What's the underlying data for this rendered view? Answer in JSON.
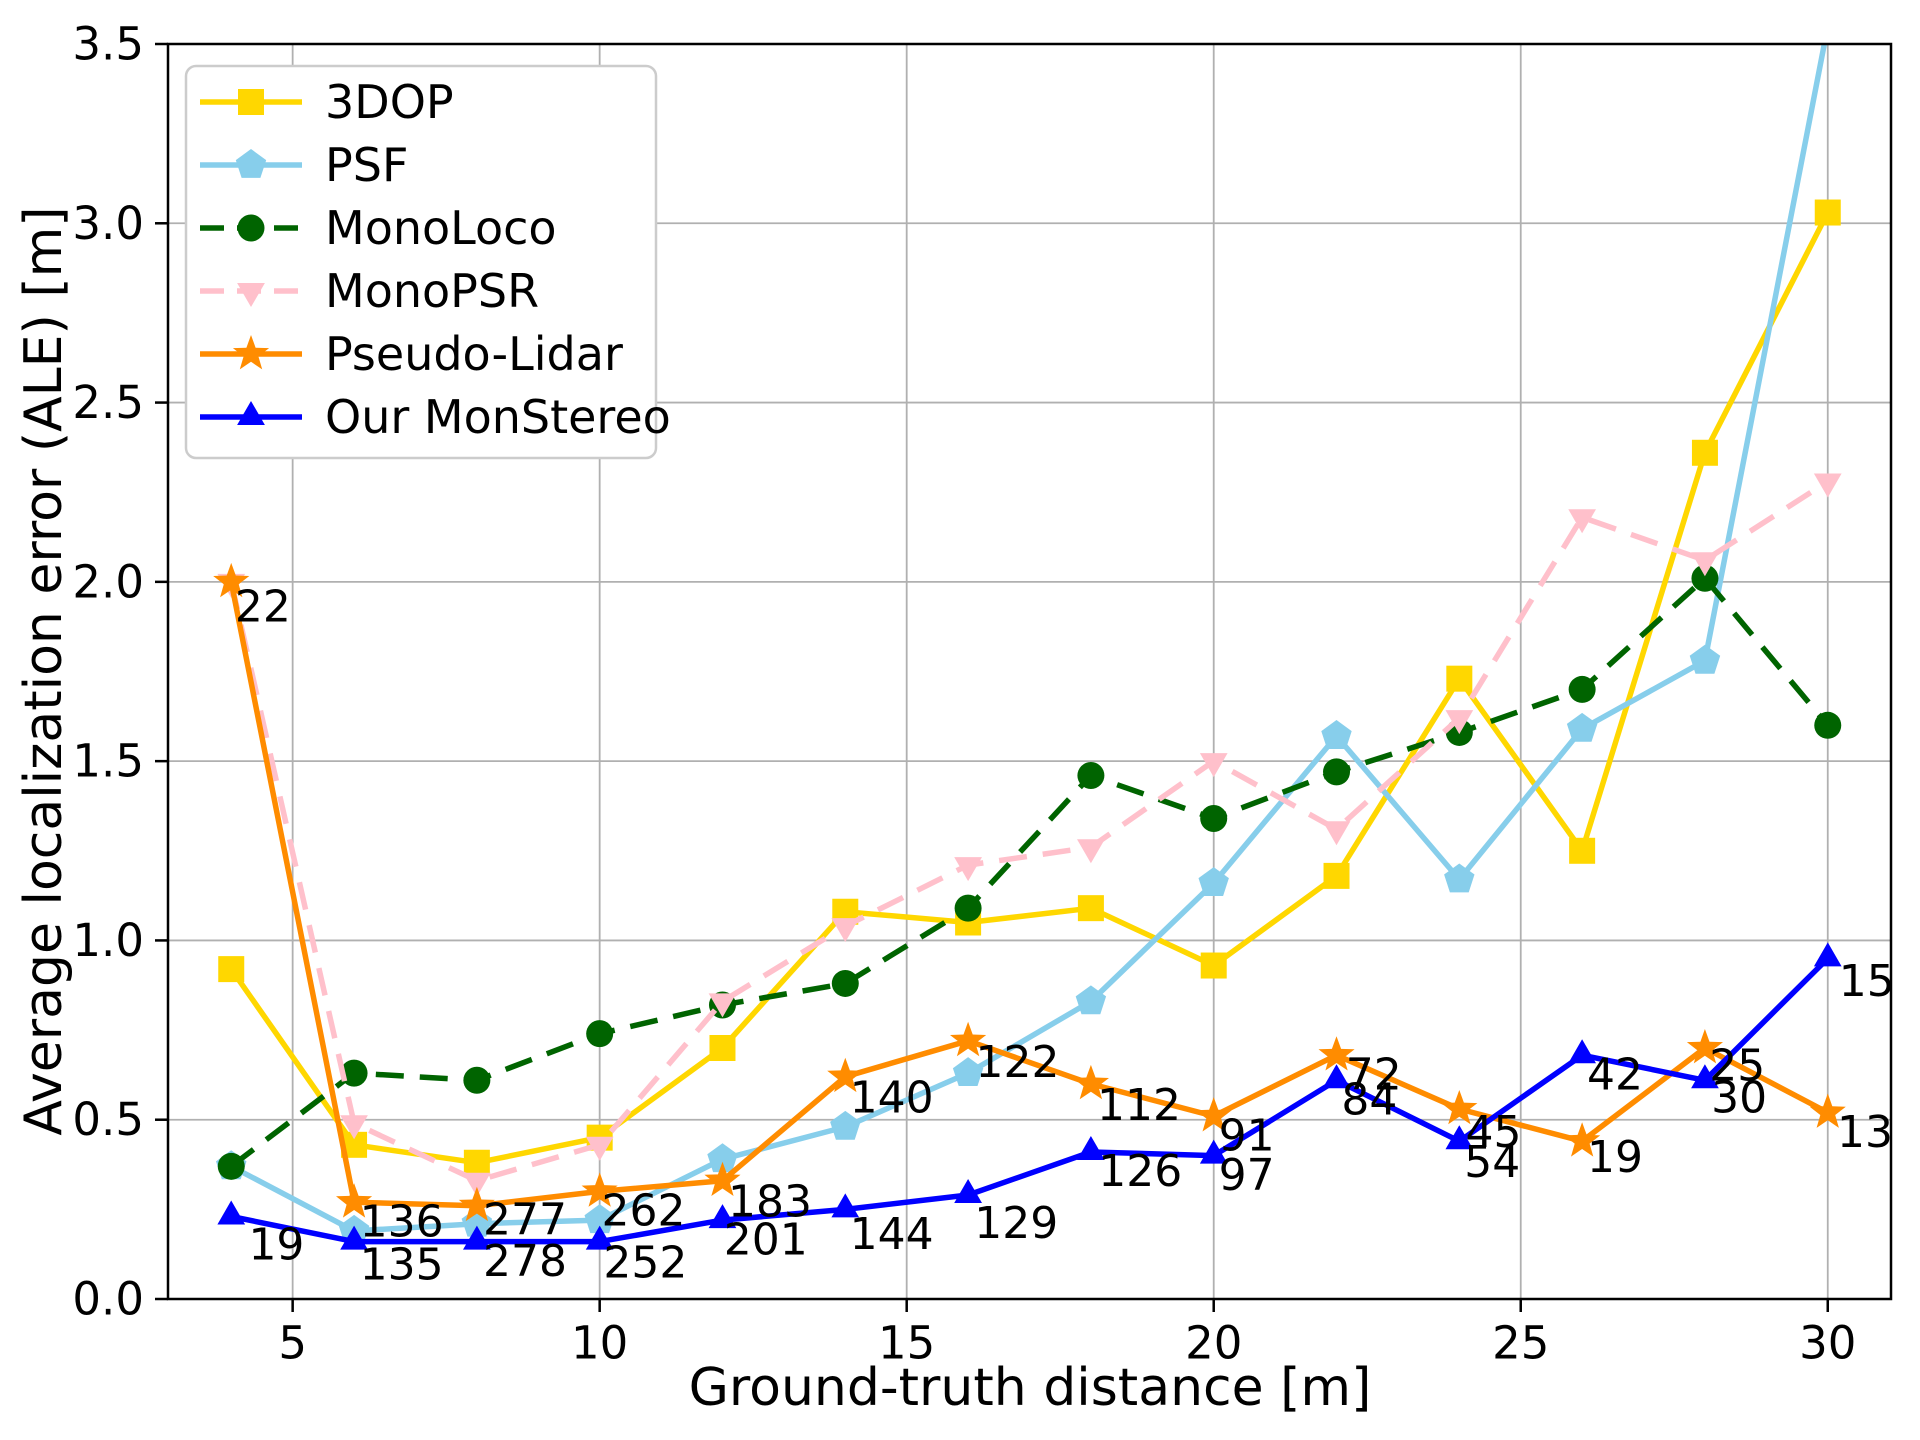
{
  "figure": {
    "background": "#ffffff",
    "grid_color": "#b0b0b0",
    "spine_color": "#000000",
    "legend_border_color": "#cccccc",
    "text_color": "#000000"
  },
  "chart_data": {
    "type": "line",
    "title": "",
    "xlabel": "Ground-truth distance [m]",
    "ylabel": "Average localization error (ALE) [m]",
    "xlim": [
      2.97,
      31.03
    ],
    "ylim": [
      0,
      3.5
    ],
    "xticks": [
      5,
      10,
      15,
      20,
      25,
      30
    ],
    "yticks": [
      0,
      0.5,
      1,
      1.5,
      2,
      2.5,
      3,
      3.5
    ],
    "ytick_labels": [
      "0.0",
      "0.5",
      "1.0",
      "1.5",
      "2.0",
      "2.5",
      "3.0",
      "3.5"
    ],
    "grid": true,
    "legend_position": "upper-left",
    "x": [
      4,
      6,
      8,
      10,
      12,
      14,
      16,
      18,
      20,
      22,
      24,
      26,
      28,
      30
    ],
    "series": [
      {
        "name": "3DOP",
        "color": "#FFD700",
        "marker": "square",
        "dash": false,
        "values": [
          0.92,
          0.43,
          0.38,
          0.45,
          0.7,
          1.08,
          1.05,
          1.09,
          0.93,
          1.18,
          1.73,
          1.25,
          2.36,
          3.03
        ]
      },
      {
        "name": "PSF",
        "color": "#87CEEB",
        "marker": "pentagon",
        "dash": false,
        "values": [
          0.37,
          0.19,
          0.21,
          0.22,
          0.39,
          0.48,
          0.63,
          0.83,
          1.16,
          1.57,
          1.17,
          1.59,
          1.78,
          3.55
        ]
      },
      {
        "name": "MonoLoco",
        "color": "#006400",
        "marker": "circle",
        "dash": true,
        "values": [
          0.37,
          0.63,
          0.61,
          0.74,
          0.82,
          0.88,
          1.09,
          1.46,
          1.34,
          1.47,
          1.58,
          1.7,
          2.01,
          1.6
        ]
      },
      {
        "name": "MonoPSR",
        "color": "#FFC0CB",
        "marker": "triangle-down",
        "dash": true,
        "values": [
          2.0,
          0.49,
          0.33,
          0.43,
          0.83,
          1.04,
          1.21,
          1.26,
          1.5,
          1.31,
          1.62,
          2.18,
          2.06,
          2.28
        ]
      },
      {
        "name": "Pseudo-Lidar",
        "color": "#FF8C00",
        "marker": "star",
        "dash": false,
        "values": [
          2.0,
          0.27,
          0.26,
          0.3,
          0.33,
          0.62,
          0.72,
          0.6,
          0.51,
          0.68,
          0.53,
          0.44,
          0.7,
          0.52
        ]
      },
      {
        "name": "Our MonStereo",
        "color": "#0000FF",
        "marker": "triangle-up",
        "dash": false,
        "values": [
          0.23,
          0.16,
          0.16,
          0.16,
          0.22,
          0.25,
          0.29,
          0.41,
          0.4,
          0.61,
          0.44,
          0.68,
          0.61,
          0.95
        ]
      }
    ],
    "annotations": [
      {
        "text": "22",
        "x": 4.06,
        "y": 1.93
      },
      {
        "text": "19",
        "x": 4.28,
        "y": 0.15
      },
      {
        "text": "136",
        "x": 6.09,
        "y": 0.215
      },
      {
        "text": "135",
        "x": 6.09,
        "y": 0.095
      },
      {
        "text": "277",
        "x": 8.1,
        "y": 0.22
      },
      {
        "text": "278",
        "x": 8.1,
        "y": 0.105
      },
      {
        "text": "262",
        "x": 10.03,
        "y": 0.245
      },
      {
        "text": "252",
        "x": 10.06,
        "y": 0.1
      },
      {
        "text": "183",
        "x": 12.09,
        "y": 0.27
      },
      {
        "text": "201",
        "x": 12.02,
        "y": 0.165
      },
      {
        "text": "140",
        "x": 14.07,
        "y": 0.56
      },
      {
        "text": "144",
        "x": 14.07,
        "y": 0.18
      },
      {
        "text": "122",
        "x": 16.12,
        "y": 0.66
      },
      {
        "text": "129",
        "x": 16.1,
        "y": 0.21
      },
      {
        "text": "112",
        "x": 18.1,
        "y": 0.54
      },
      {
        "text": "126",
        "x": 18.12,
        "y": 0.355
      },
      {
        "text": "91",
        "x": 20.08,
        "y": 0.455
      },
      {
        "text": "97",
        "x": 20.08,
        "y": 0.345
      },
      {
        "text": "72",
        "x": 22.15,
        "y": 0.625
      },
      {
        "text": "84",
        "x": 22.08,
        "y": 0.555
      },
      {
        "text": "45",
        "x": 24.1,
        "y": 0.465
      },
      {
        "text": "54",
        "x": 24.08,
        "y": 0.38
      },
      {
        "text": "42",
        "x": 26.08,
        "y": 0.625
      },
      {
        "text": "19",
        "x": 26.08,
        "y": 0.395
      },
      {
        "text": "25",
        "x": 28.07,
        "y": 0.65
      },
      {
        "text": "30",
        "x": 28.1,
        "y": 0.56
      },
      {
        "text": "15",
        "x": 30.18,
        "y": 0.885
      },
      {
        "text": "13",
        "x": 30.15,
        "y": 0.465
      }
    ]
  }
}
